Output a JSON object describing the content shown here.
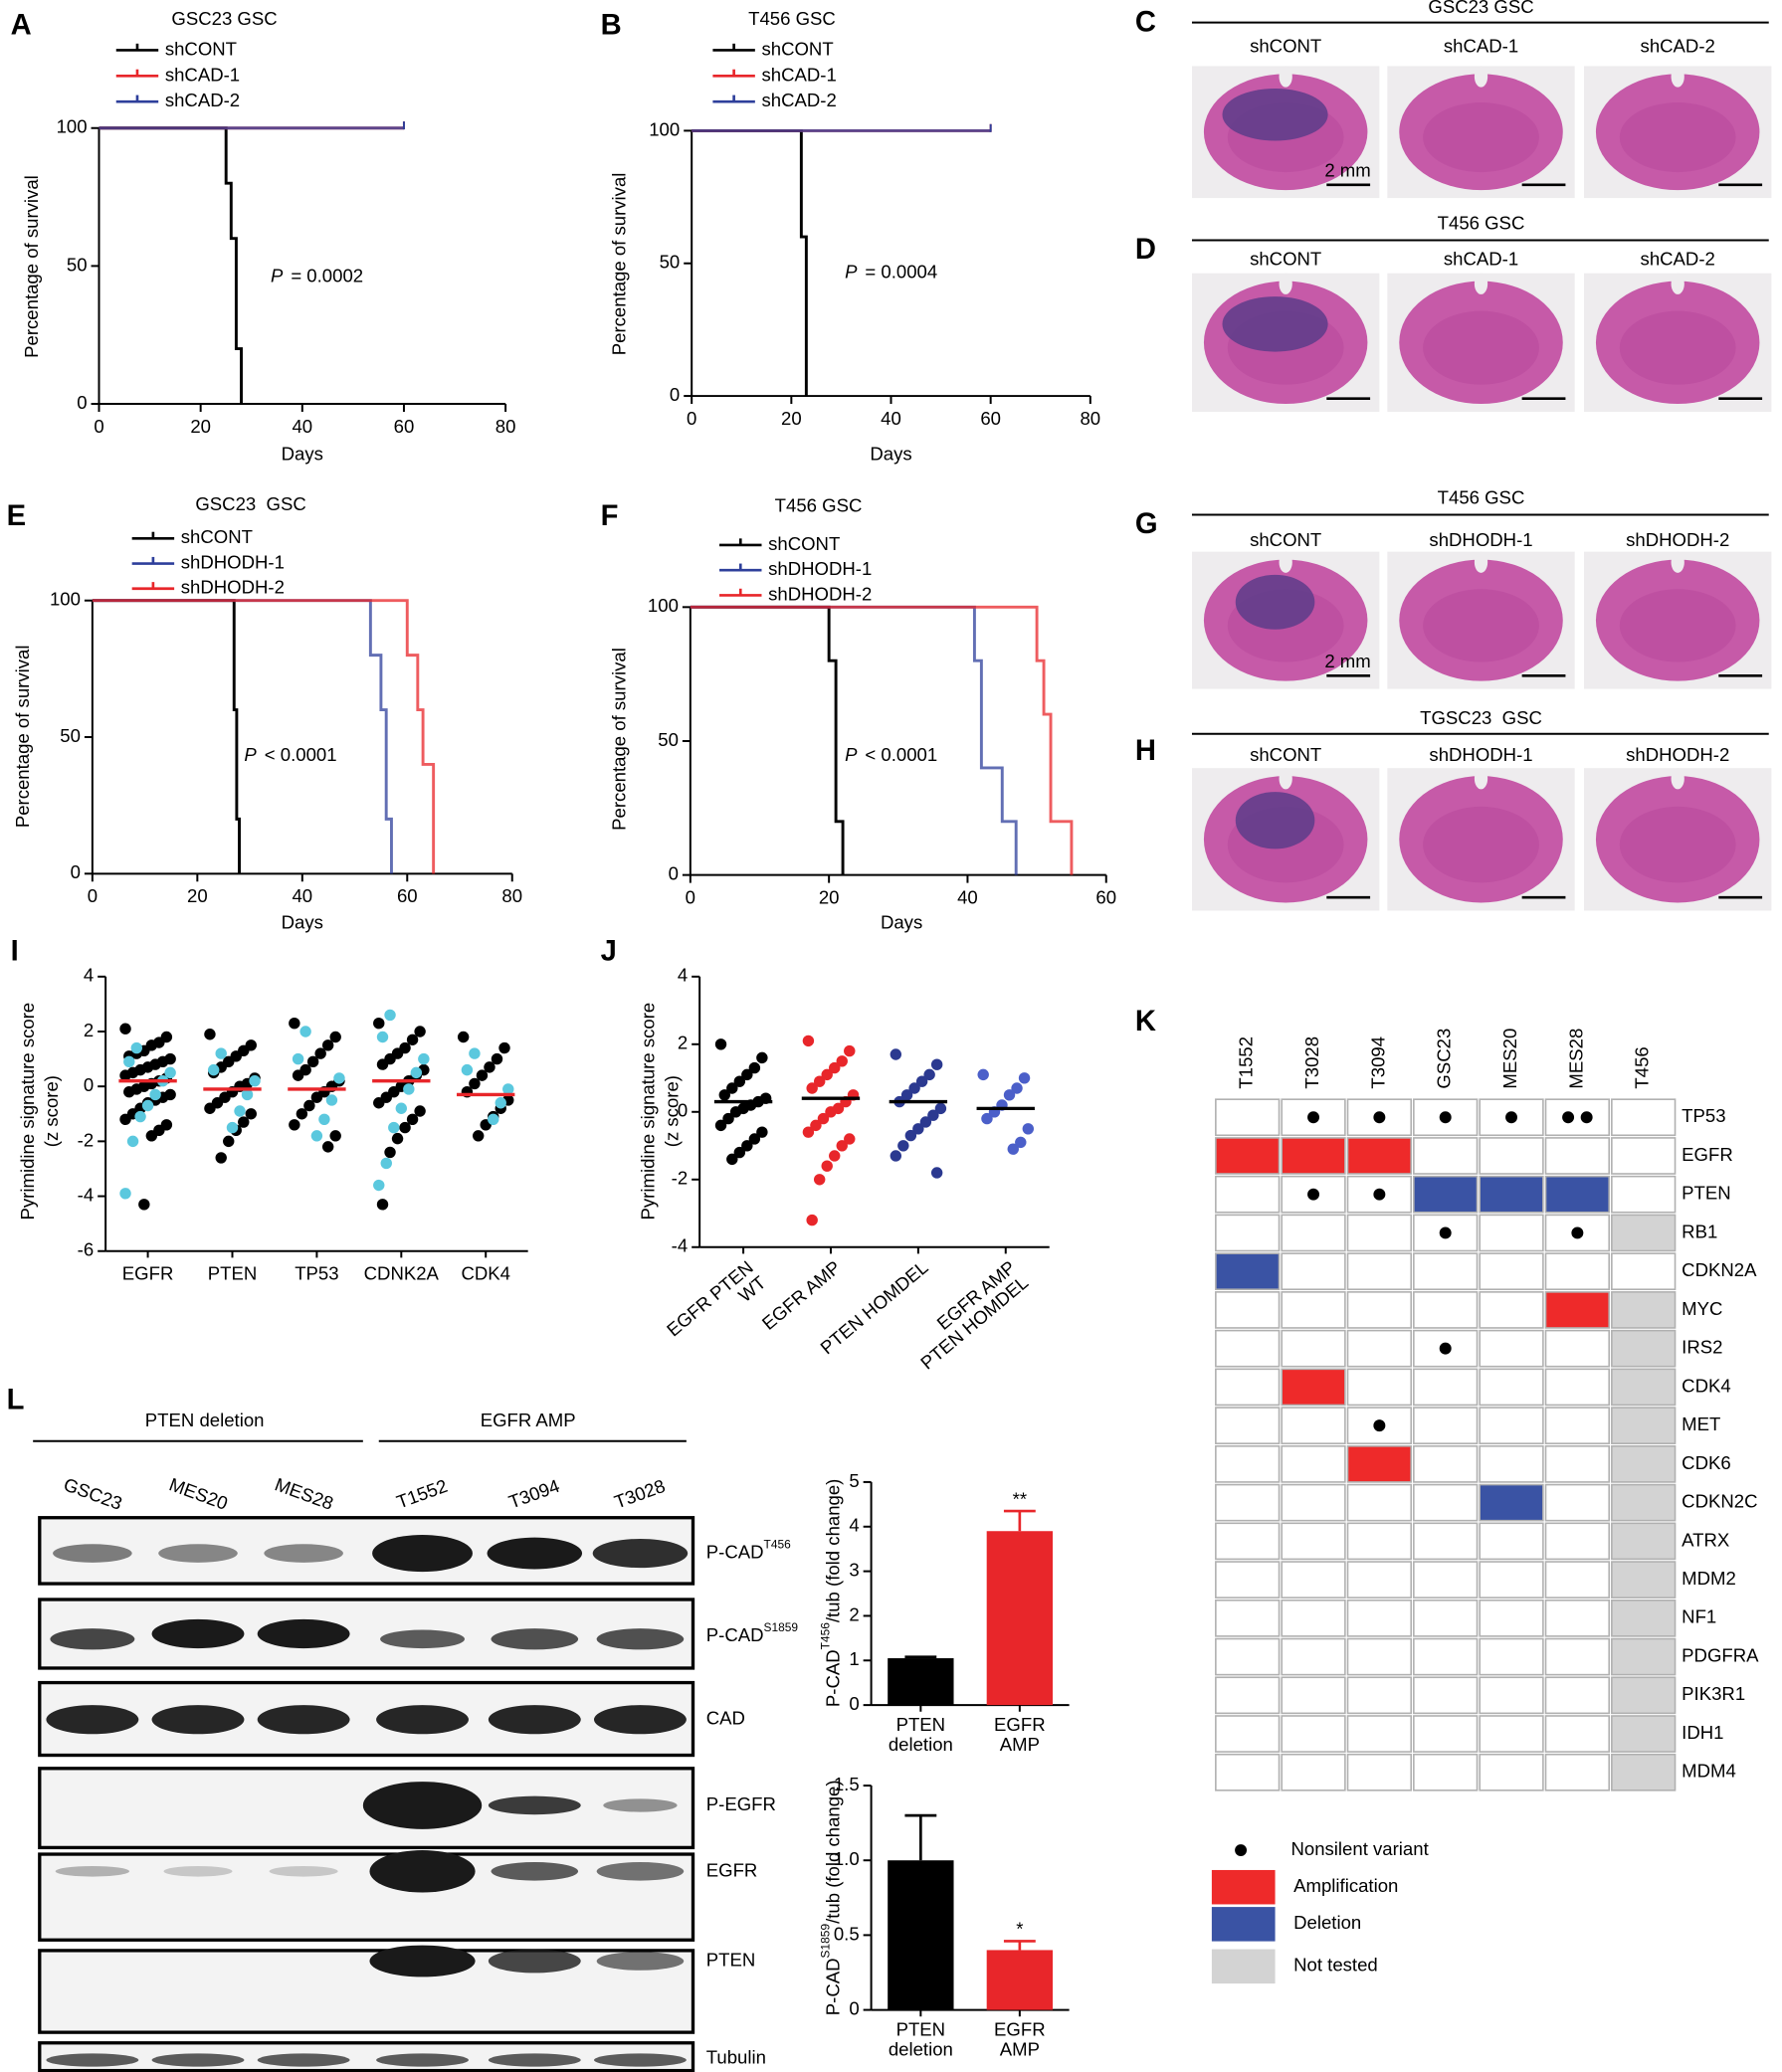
{
  "chart_data": [
    {
      "type": "survival",
      "panel": "A",
      "title": "GSC23 GSC",
      "xlabel": "Days",
      "ylabel": "Percentage of survival",
      "xlim": [
        0,
        80
      ],
      "xticks": [
        0,
        20,
        40,
        60,
        80
      ],
      "ylim": [
        0,
        100
      ],
      "yticks": [
        0,
        50,
        100
      ],
      "annotation": {
        "italic": "P",
        "text": "= 0.0002"
      },
      "series": [
        {
          "name": "shCONT",
          "color": "#000000",
          "x": [
            0,
            25,
            25,
            26,
            26,
            27,
            27,
            28,
            28
          ],
          "values": [
            100,
            100,
            80,
            80,
            60,
            60,
            20,
            20,
            0
          ]
        },
        {
          "name": "shCAD-1",
          "color": "#e8262a",
          "x": [
            0,
            60
          ],
          "values": [
            100,
            100
          ]
        },
        {
          "name": "shCAD-2",
          "color": "#2e3f9b",
          "x": [
            0,
            60
          ],
          "values": [
            100,
            100
          ]
        }
      ]
    },
    {
      "type": "survival",
      "panel": "B",
      "title": "T456 GSC",
      "xlabel": "Days",
      "ylabel": "Percentage of survival",
      "xlim": [
        0,
        80
      ],
      "xticks": [
        0,
        20,
        40,
        60,
        80
      ],
      "ylim": [
        0,
        100
      ],
      "yticks": [
        0,
        50,
        100
      ],
      "annotation": {
        "italic": "P",
        "text": "= 0.0004"
      },
      "series": [
        {
          "name": "shCONT",
          "color": "#000000",
          "x": [
            0,
            22,
            22,
            23,
            23
          ],
          "values": [
            100,
            100,
            60,
            60,
            0
          ]
        },
        {
          "name": "shCAD-1",
          "color": "#e8262a",
          "x": [
            0,
            60
          ],
          "values": [
            100,
            100
          ]
        },
        {
          "name": "shCAD-2",
          "color": "#2e3f9b",
          "x": [
            0,
            60
          ],
          "values": [
            100,
            100
          ]
        }
      ]
    },
    {
      "type": "survival",
      "panel": "E",
      "title": "GSC23  GSC",
      "xlabel": "Days",
      "ylabel": "Percentage of survival",
      "xlim": [
        0,
        80
      ],
      "xticks": [
        0,
        20,
        40,
        60,
        80
      ],
      "ylim": [
        0,
        100
      ],
      "yticks": [
        0,
        50,
        100
      ],
      "annotation": {
        "italic": "P",
        "text": "< 0.0001"
      },
      "series": [
        {
          "name": "shCONT",
          "color": "#000000",
          "x": [
            0,
            27,
            27,
            27.5,
            27.5,
            28,
            28
          ],
          "values": [
            100,
            100,
            60,
            60,
            20,
            20,
            0
          ]
        },
        {
          "name": "shDHODH-1",
          "color": "#2e3f9b",
          "x": [
            0,
            53,
            53,
            55,
            55,
            56,
            56,
            57,
            57
          ],
          "values": [
            100,
            100,
            80,
            80,
            60,
            60,
            20,
            20,
            0
          ]
        },
        {
          "name": "shDHODH-2",
          "color": "#e8262a",
          "x": [
            0,
            60,
            60,
            62,
            62,
            63,
            63,
            65,
            65
          ],
          "values": [
            100,
            100,
            80,
            80,
            60,
            60,
            40,
            40,
            0
          ]
        }
      ]
    },
    {
      "type": "survival",
      "panel": "F",
      "title": "T456 GSC",
      "xlabel": "Days",
      "ylabel": "Percentage of survival",
      "xlim": [
        0,
        60
      ],
      "xticks": [
        0,
        20,
        40,
        60
      ],
      "ylim": [
        0,
        100
      ],
      "yticks": [
        0,
        50,
        100
      ],
      "annotation": {
        "italic": "P",
        "text": "< 0.0001"
      },
      "series": [
        {
          "name": "shCONT",
          "color": "#000000",
          "x": [
            0,
            20,
            20,
            21,
            21,
            22,
            22
          ],
          "values": [
            100,
            100,
            80,
            80,
            20,
            20,
            0
          ]
        },
        {
          "name": "shDHODH-1",
          "color": "#2e3f9b",
          "x": [
            0,
            41,
            41,
            42,
            42,
            45,
            45,
            47,
            47
          ],
          "values": [
            100,
            100,
            80,
            80,
            40,
            40,
            20,
            20,
            0
          ]
        },
        {
          "name": "shDHODH-2",
          "color": "#e8262a",
          "x": [
            0,
            50,
            50,
            51,
            51,
            52,
            52,
            55,
            55
          ],
          "values": [
            100,
            100,
            80,
            80,
            60,
            60,
            20,
            20,
            0
          ]
        }
      ]
    },
    {
      "type": "strip",
      "panel": "I",
      "ylabel": [
        "Pyrimidine signature score",
        "(z score)"
      ],
      "categories": [
        "EGFR",
        "PTEN",
        "TP53",
        "CDNK2A",
        "CDK4"
      ],
      "ylim": [
        -6,
        4
      ],
      "yticks": [
        -6,
        -4,
        -2,
        0,
        2,
        4
      ],
      "series": [
        {
          "color": "#000000",
          "values": [
            [
              2.1,
              1.8,
              1.6,
              1.5,
              1.3,
              1.2,
              1.1,
              1.0,
              0.9,
              0.8,
              0.7,
              0.6,
              0.5,
              0.4,
              0.3,
              0.2,
              0.1,
              0.0,
              -0.1,
              -0.2,
              -0.3,
              -0.4,
              -0.5,
              -0.6,
              -0.8,
              -1.0,
              -1.2,
              -1.4,
              -1.6,
              -1.8,
              -4.3
            ],
            [
              1.9,
              1.5,
              1.3,
              1.1,
              0.9,
              0.7,
              0.5,
              0.3,
              0.1,
              0.0,
              -0.2,
              -0.4,
              -0.6,
              -0.8,
              -1.0,
              -1.3,
              -1.6,
              -2.0,
              -2.6
            ],
            [
              2.3,
              1.8,
              1.5,
              1.2,
              0.9,
              0.6,
              0.4,
              0.2,
              0.0,
              -0.2,
              -0.4,
              -0.7,
              -1.0,
              -1.4,
              -1.8,
              -2.2
            ],
            [
              2.3,
              2.0,
              1.7,
              1.4,
              1.2,
              1.0,
              0.8,
              0.6,
              0.4,
              0.2,
              0.0,
              -0.2,
              -0.4,
              -0.6,
              -0.9,
              -1.2,
              -1.5,
              -1.9,
              -2.4,
              -4.3
            ],
            [
              1.8,
              1.4,
              1.0,
              0.7,
              0.4,
              0.1,
              -0.2,
              -0.5,
              -0.8,
              -1.1,
              -1.4,
              -1.8
            ]
          ]
        },
        {
          "color": "#5bc8de",
          "values": [
            [
              1.4,
              0.9,
              0.5,
              0.2,
              -0.3,
              -0.7,
              -1.1,
              -2.0,
              -3.9
            ],
            [
              1.2,
              0.6,
              0.2,
              -0.3,
              -0.9,
              -1.5
            ],
            [
              2.0,
              1.0,
              0.3,
              -0.5,
              -1.2,
              -1.8
            ],
            [
              2.6,
              1.8,
              1.0,
              0.5,
              -0.1,
              -0.8,
              -1.5,
              -2.8,
              -3.6
            ],
            [
              1.2,
              0.6,
              -0.1,
              -0.6,
              -1.2
            ]
          ]
        }
      ],
      "means": [
        0.2,
        -0.1,
        -0.1,
        0.2,
        -0.3
      ],
      "mean_color": "#e8262a"
    },
    {
      "type": "strip",
      "panel": "J",
      "ylabel": [
        "Pyrimidine signature score",
        "(z score)"
      ],
      "categories": [
        [
          "EGFR PTEN",
          "WT"
        ],
        [
          "EGFR AMP"
        ],
        [
          "PTEN HOMDEL"
        ],
        [
          "EGFR AMP",
          "PTEN HOMDEL"
        ]
      ],
      "ylim": [
        -4,
        4
      ],
      "yticks": [
        -4,
        -2,
        0,
        2,
        4
      ],
      "colors": [
        "#000000",
        "#e8262a",
        "#2b3990",
        "#4b5fc9"
      ],
      "values": [
        [
          2.0,
          1.6,
          1.3,
          1.1,
          0.9,
          0.7,
          0.5,
          0.4,
          0.3,
          0.2,
          0.1,
          0.0,
          -0.2,
          -0.4,
          -0.6,
          -0.8,
          -1.0,
          -1.2,
          -1.4
        ],
        [
          2.1,
          1.8,
          1.5,
          1.3,
          1.1,
          0.9,
          0.7,
          0.5,
          0.3,
          0.1,
          0.0,
          -0.2,
          -0.4,
          -0.6,
          -0.8,
          -1.0,
          -1.3,
          -1.6,
          -2.0,
          -3.2
        ],
        [
          1.7,
          1.4,
          1.1,
          0.9,
          0.7,
          0.5,
          0.3,
          0.1,
          -0.1,
          -0.3,
          -0.5,
          -0.7,
          -1.0,
          -1.3,
          -1.8
        ],
        [
          1.1,
          1.0,
          0.7,
          0.5,
          0.2,
          0.0,
          -0.2,
          -0.5,
          -0.9,
          -1.1
        ]
      ],
      "means": [
        0.3,
        0.4,
        0.3,
        0.1
      ],
      "mean_color": "#000000"
    },
    {
      "type": "oncoprint",
      "panel": "K",
      "columns": [
        "T1552",
        "T3028",
        "T3094",
        "GSC23",
        "MES20",
        "MES28",
        "T456"
      ],
      "rows": [
        "TP53",
        "EGFR",
        "PTEN",
        "RB1",
        "CDKN2A",
        "MYC",
        "IRS2",
        "CDK4",
        "MET",
        "CDK6",
        "CDKN2C",
        "ATRX",
        "MDM2",
        "NF1",
        "PDGFRA",
        "PIK3R1",
        "IDH1",
        "MDM4"
      ],
      "cells": [
        [
          null,
          null,
          null,
          null,
          null,
          null,
          null
        ],
        [
          "amp",
          "amp",
          "amp",
          null,
          null,
          null,
          null
        ],
        [
          null,
          null,
          null,
          "del",
          "del",
          "del",
          null
        ],
        [
          null,
          null,
          null,
          null,
          null,
          null,
          "nt"
        ],
        [
          "del",
          null,
          null,
          null,
          null,
          null,
          null
        ],
        [
          null,
          null,
          null,
          null,
          null,
          "amp",
          "nt"
        ],
        [
          null,
          null,
          null,
          null,
          null,
          null,
          "nt"
        ],
        [
          null,
          "amp",
          null,
          null,
          null,
          null,
          "nt"
        ],
        [
          null,
          null,
          null,
          null,
          null,
          null,
          "nt"
        ],
        [
          null,
          null,
          "amp",
          null,
          null,
          null,
          "nt"
        ],
        [
          null,
          null,
          null,
          null,
          "del",
          null,
          "nt"
        ],
        [
          null,
          null,
          null,
          null,
          null,
          null,
          "nt"
        ],
        [
          null,
          null,
          null,
          null,
          null,
          null,
          "nt"
        ],
        [
          null,
          null,
          null,
          null,
          null,
          null,
          "nt"
        ],
        [
          null,
          null,
          null,
          null,
          null,
          null,
          "nt"
        ],
        [
          null,
          null,
          null,
          null,
          null,
          null,
          "nt"
        ],
        [
          null,
          null,
          null,
          null,
          null,
          null,
          "nt"
        ],
        [
          null,
          null,
          null,
          null,
          null,
          null,
          "nt"
        ]
      ],
      "variants": [
        [
          0,
          1,
          1,
          1,
          1,
          2,
          0
        ],
        [
          0,
          0,
          0,
          0,
          0,
          0,
          0
        ],
        [
          0,
          1,
          1,
          0,
          0,
          0,
          0
        ],
        [
          0,
          0,
          0,
          1,
          0,
          1,
          0
        ],
        [
          0,
          0,
          0,
          0,
          0,
          0,
          0
        ],
        [
          0,
          0,
          0,
          0,
          0,
          0,
          0
        ],
        [
          0,
          0,
          0,
          1,
          0,
          0,
          0
        ],
        [
          0,
          0,
          0,
          0,
          0,
          0,
          0
        ],
        [
          0,
          0,
          1,
          0,
          0,
          0,
          0
        ],
        [
          0,
          0,
          0,
          0,
          0,
          0,
          0
        ],
        [
          0,
          0,
          0,
          0,
          0,
          0,
          0
        ],
        [
          0,
          0,
          0,
          0,
          0,
          0,
          0
        ],
        [
          0,
          0,
          0,
          0,
          0,
          0,
          0
        ],
        [
          0,
          0,
          0,
          0,
          0,
          0,
          0
        ],
        [
          0,
          0,
          0,
          0,
          0,
          0,
          0
        ],
        [
          0,
          0,
          0,
          0,
          0,
          0,
          0
        ],
        [
          0,
          0,
          0,
          0,
          0,
          0,
          0
        ],
        [
          0,
          0,
          0,
          0,
          0,
          0,
          0
        ]
      ],
      "colors": {
        "amp": "#ee2a2a",
        "del": "#3a53a4",
        "nt": "#d3d3d3"
      },
      "legend": {
        "variant": "Nonsilent variant",
        "amp": "Amplification",
        "del": "Deletion",
        "nt": "Not tested"
      }
    },
    {
      "type": "bar",
      "categories": [
        [
          "PTEN",
          "deletion"
        ],
        [
          "EGFR",
          "AMP"
        ]
      ],
      "ylabel": {
        "pre": "P-CAD",
        "sup": "T456",
        "post": "/tub (fold change)"
      },
      "values": [
        1.05,
        3.9
      ],
      "errors": [
        0.03,
        0.45
      ],
      "colors": [
        "#000000",
        "#e8262a"
      ],
      "significance": [
        null,
        "**"
      ],
      "ylim": [
        0,
        5
      ],
      "yticks": [
        0,
        1,
        2,
        3,
        4,
        5
      ]
    },
    {
      "type": "bar",
      "categories": [
        [
          "PTEN",
          "deletion"
        ],
        [
          "EGFR",
          "AMP"
        ]
      ],
      "ylabel": {
        "pre": "P-CAD",
        "sup": "S1859",
        "post": "/tub (fold change)"
      },
      "values": [
        1.0,
        0.4
      ],
      "errors": [
        0.3,
        0.06
      ],
      "colors": [
        "#000000",
        "#e8262a"
      ],
      "significance": [
        null,
        "*"
      ],
      "ylim": [
        0,
        1.5
      ],
      "yticks": [
        0,
        0.5,
        {
          "value": 1,
          "label": "1.0"
        },
        1.5
      ]
    }
  ],
  "histology": [
    {
      "panel": "C",
      "title": "GSC23 GSC",
      "labels": [
        "shCONT",
        "shCAD-1",
        "shCAD-2"
      ],
      "scale_bar": "2 mm"
    },
    {
      "panel": "D",
      "title": "T456 GSC",
      "labels": [
        "shCONT",
        "shCAD-1",
        "shCAD-2"
      ]
    },
    {
      "panel": "G",
      "title": "T456 GSC",
      "labels": [
        "shCONT",
        "shDHODH-1",
        "shDHODH-2"
      ],
      "scale_bar": "2 mm"
    },
    {
      "panel": "H",
      "title": "TGSC23  GSC",
      "labels": [
        "shCONT",
        "shDHODH-1",
        "shDHODH-2"
      ]
    }
  ],
  "western_blot": {
    "panel": "L",
    "groups": [
      "PTEN deletion",
      "EGFR AMP"
    ],
    "lanes": [
      "GSC23",
      "MES20",
      "MES28",
      "T1552",
      "T3094",
      "T3028"
    ],
    "rows": [
      {
        "text": "P-CAD",
        "sup": "T456"
      },
      {
        "text": "P-CAD",
        "sup": "S1859"
      },
      {
        "text": "CAD"
      },
      {
        "text": "P-EGFR"
      },
      {
        "text": "EGFR"
      },
      {
        "text": "PTEN"
      },
      {
        "text": "Tubulin"
      }
    ]
  }
}
